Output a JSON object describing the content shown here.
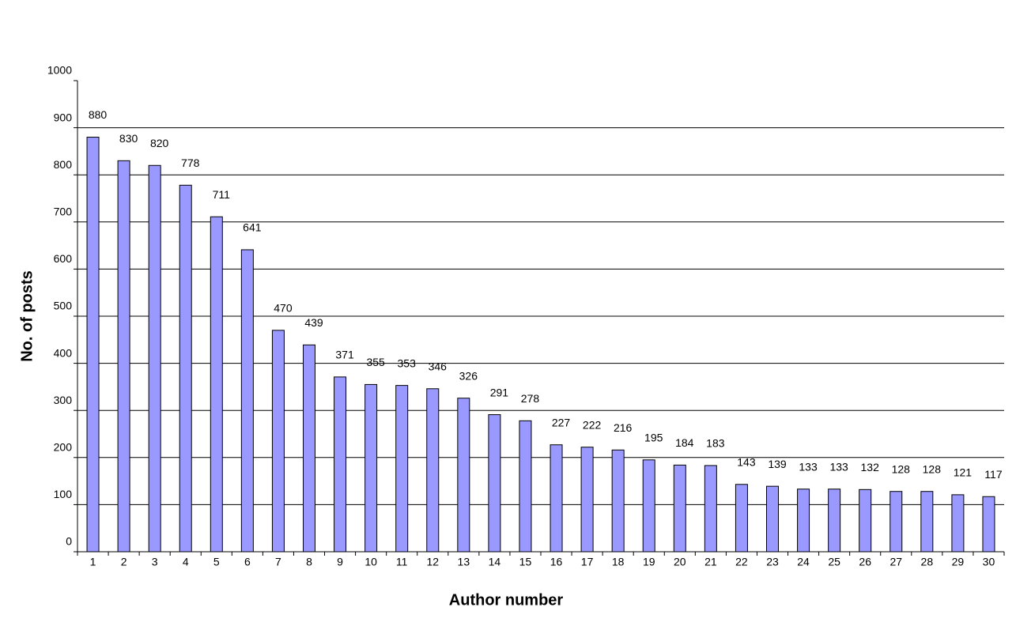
{
  "chart_data": {
    "type": "bar",
    "x_label": "Author number",
    "y_label": "No. of posts",
    "categories": [
      "1",
      "2",
      "3",
      "4",
      "5",
      "6",
      "7",
      "8",
      "9",
      "10",
      "11",
      "12",
      "13",
      "14",
      "15",
      "16",
      "17",
      "18",
      "19",
      "20",
      "21",
      "22",
      "23",
      "24",
      "25",
      "26",
      "27",
      "28",
      "29",
      "30"
    ],
    "values": [
      880,
      830,
      820,
      778,
      711,
      641,
      470,
      439,
      371,
      355,
      353,
      346,
      326,
      291,
      278,
      227,
      222,
      216,
      195,
      184,
      183,
      143,
      139,
      133,
      133,
      132,
      128,
      128,
      121,
      117
    ],
    "color": "#9999ff",
    "ylim": [
      0,
      1000
    ],
    "yticks": [
      0,
      100,
      200,
      300,
      400,
      500,
      600,
      700,
      800,
      900,
      1000
    ],
    "grid": true
  }
}
